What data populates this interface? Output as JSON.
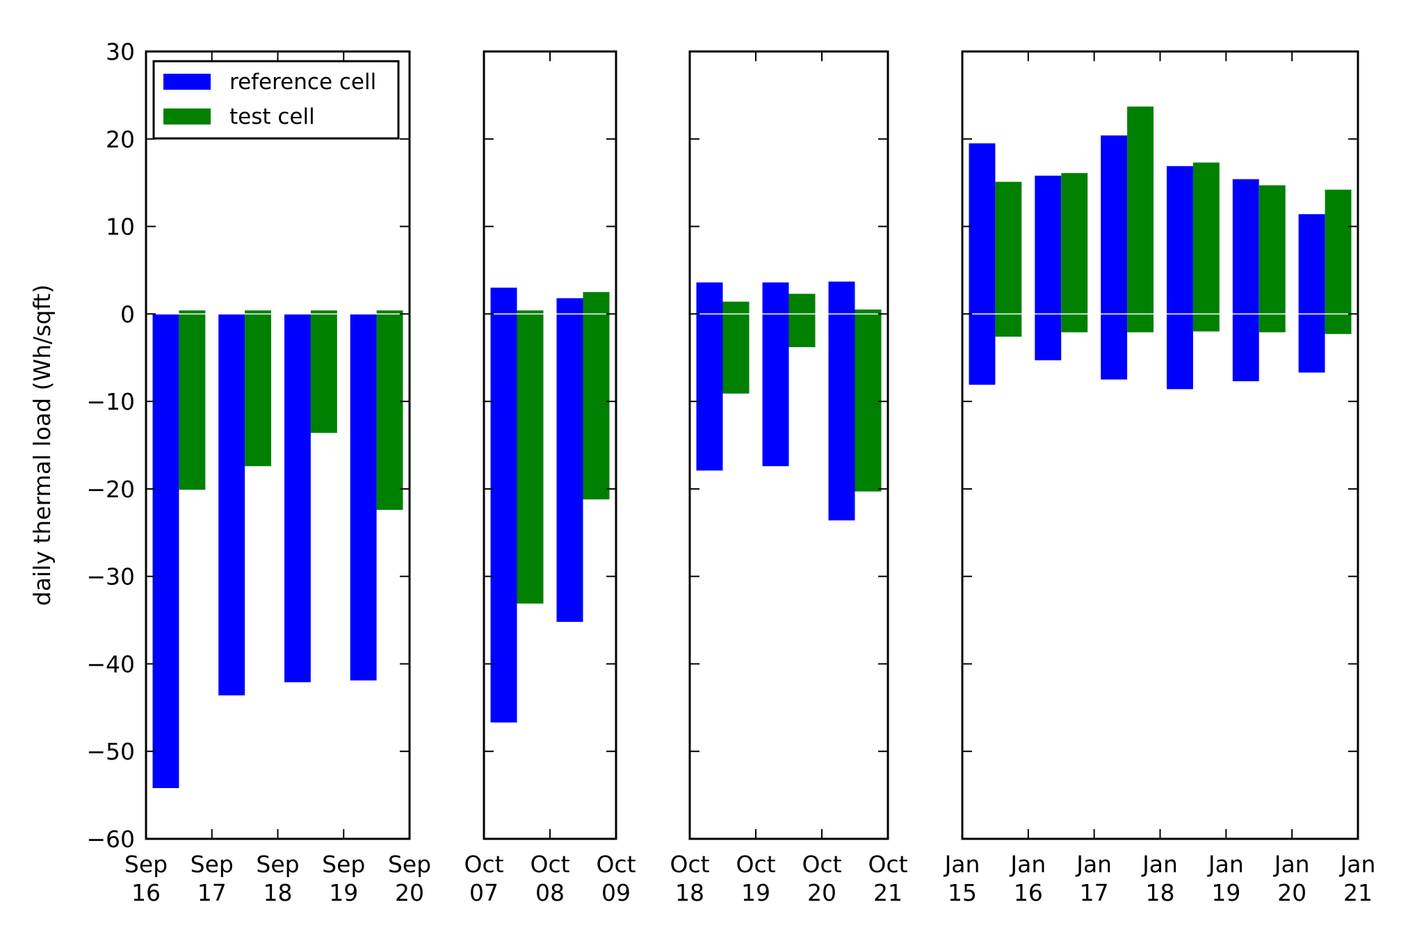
{
  "figure": {
    "ylabel": "daily thermal load (Wh/sqft)",
    "legend": {
      "placement": "upper-left of first panel",
      "entries": [
        {
          "label": "reference cell",
          "color": "#0000ff"
        },
        {
          "label": "test cell",
          "color": "#008000"
        }
      ]
    },
    "yaxis": {
      "ylim": [
        -60,
        30
      ],
      "ticks": [
        "30",
        "20",
        "10",
        "0",
        "−10",
        "−20",
        "−30",
        "−40",
        "−50",
        "−60"
      ],
      "tick_values": [
        30,
        20,
        10,
        0,
        -10,
        -20,
        -30,
        -40,
        -50,
        -60
      ]
    }
  },
  "chart_data": [
    {
      "type": "bar",
      "xticks": [
        {
          "month": "Sep",
          "day": "16"
        },
        {
          "month": "Sep",
          "day": "17"
        },
        {
          "month": "Sep",
          "day": "18"
        },
        {
          "month": "Sep",
          "day": "19"
        },
        {
          "month": "Sep",
          "day": "20"
        }
      ],
      "days": [
        {
          "reference_cell": {
            "low": -54.2,
            "high": 0
          },
          "test_cell": {
            "low": -20.1,
            "high": 0.4
          }
        },
        {
          "reference_cell": {
            "low": -43.6,
            "high": 0
          },
          "test_cell": {
            "low": -17.4,
            "high": 0.4
          }
        },
        {
          "reference_cell": {
            "low": -42.1,
            "high": 0
          },
          "test_cell": {
            "low": -13.6,
            "high": 0.4
          }
        },
        {
          "reference_cell": {
            "low": -41.9,
            "high": 0
          },
          "test_cell": {
            "low": -22.4,
            "high": 0.4
          }
        }
      ]
    },
    {
      "type": "bar",
      "xticks": [
        {
          "month": "Oct",
          "day": "07"
        },
        {
          "month": "Oct",
          "day": "08"
        },
        {
          "month": "Oct",
          "day": "09"
        }
      ],
      "days": [
        {
          "reference_cell": {
            "low": -46.7,
            "high": 3.0
          },
          "test_cell": {
            "low": -33.1,
            "high": 0.4
          }
        },
        {
          "reference_cell": {
            "low": -35.2,
            "high": 1.8
          },
          "test_cell": {
            "low": -21.2,
            "high": 2.5
          }
        }
      ]
    },
    {
      "type": "bar",
      "xticks": [
        {
          "month": "Oct",
          "day": "18"
        },
        {
          "month": "Oct",
          "day": "19"
        },
        {
          "month": "Oct",
          "day": "20"
        },
        {
          "month": "Oct",
          "day": "21"
        }
      ],
      "days": [
        {
          "reference_cell": {
            "low": -17.9,
            "high": 3.6
          },
          "test_cell": {
            "low": -9.1,
            "high": 1.4
          }
        },
        {
          "reference_cell": {
            "low": -17.4,
            "high": 3.6
          },
          "test_cell": {
            "low": -3.8,
            "high": 2.3
          }
        },
        {
          "reference_cell": {
            "low": -23.6,
            "high": 3.7
          },
          "test_cell": {
            "low": -20.3,
            "high": 0.5
          }
        }
      ]
    },
    {
      "type": "bar",
      "xticks": [
        {
          "month": "Jan",
          "day": "15"
        },
        {
          "month": "Jan",
          "day": "16"
        },
        {
          "month": "Jan",
          "day": "17"
        },
        {
          "month": "Jan",
          "day": "18"
        },
        {
          "month": "Jan",
          "day": "19"
        },
        {
          "month": "Jan",
          "day": "20"
        },
        {
          "month": "Jan",
          "day": "21"
        }
      ],
      "days": [
        {
          "reference_cell": {
            "low": -8.1,
            "high": 19.5
          },
          "test_cell": {
            "low": -2.6,
            "high": 15.1
          }
        },
        {
          "reference_cell": {
            "low": -5.3,
            "high": 15.8
          },
          "test_cell": {
            "low": -2.1,
            "high": 16.1
          }
        },
        {
          "reference_cell": {
            "low": -7.5,
            "high": 20.4
          },
          "test_cell": {
            "low": -2.1,
            "high": 23.7
          }
        },
        {
          "reference_cell": {
            "low": -8.6,
            "high": 16.9
          },
          "test_cell": {
            "low": -2.0,
            "high": 17.3
          }
        },
        {
          "reference_cell": {
            "low": -7.7,
            "high": 15.4
          },
          "test_cell": {
            "low": -2.1,
            "high": 14.7
          }
        },
        {
          "reference_cell": {
            "low": -6.7,
            "high": 11.4
          },
          "test_cell": {
            "low": -2.3,
            "high": 14.2
          }
        }
      ]
    }
  ]
}
